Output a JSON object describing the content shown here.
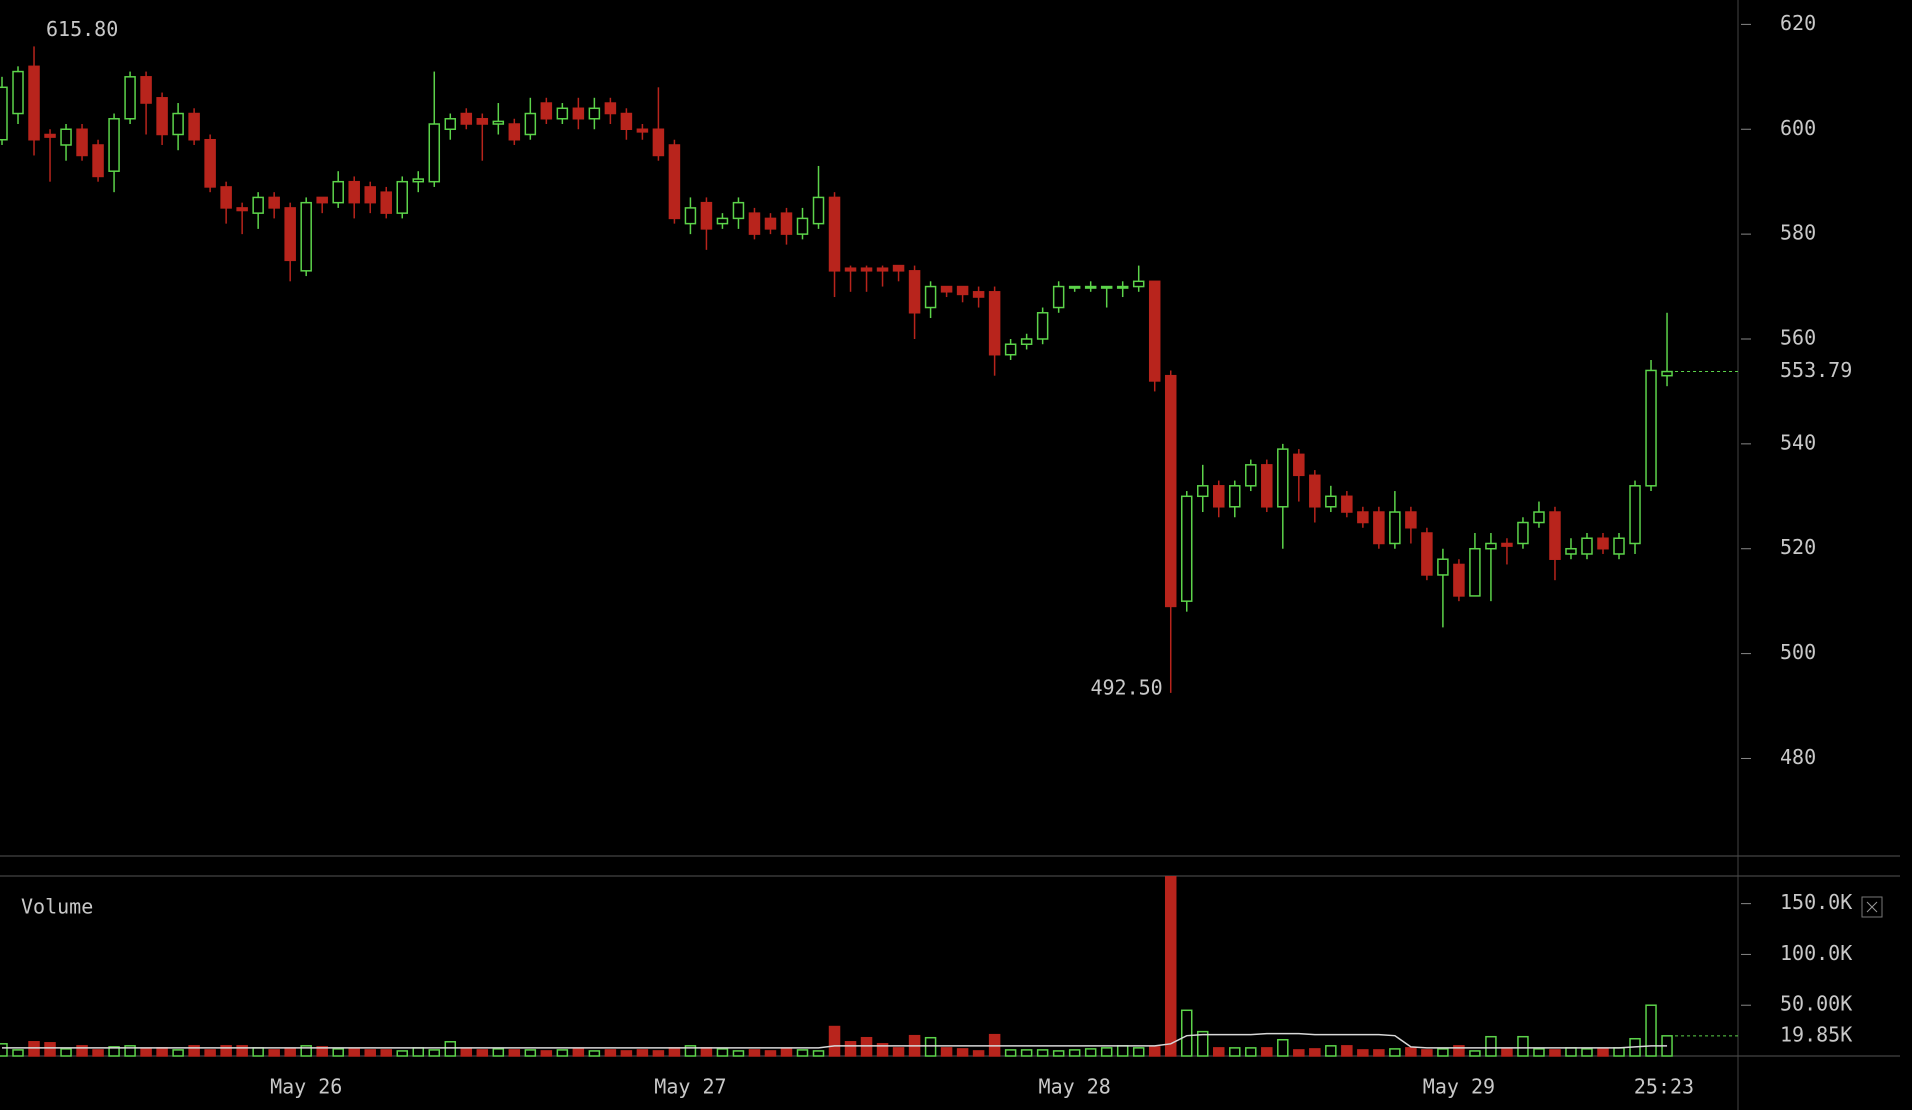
{
  "chart_data": {
    "type": "candlestick",
    "categories": [
      null,
      null,
      null,
      null,
      null,
      null,
      null,
      null,
      null,
      null,
      null,
      null,
      null,
      null,
      null,
      null,
      null,
      null,
      null,
      "May 26",
      null,
      null,
      null,
      null,
      null,
      null,
      null,
      null,
      null,
      null,
      null,
      null,
      null,
      null,
      null,
      null,
      null,
      null,
      null,
      null,
      null,
      null,
      null,
      "May 27",
      null,
      null,
      null,
      null,
      null,
      null,
      null,
      null,
      null,
      null,
      null,
      null,
      null,
      null,
      null,
      null,
      null,
      null,
      null,
      null,
      null,
      null,
      null,
      "May 28",
      null,
      null,
      null,
      null,
      null,
      null,
      null,
      null,
      null,
      null,
      null,
      null,
      null,
      null,
      null,
      null,
      null,
      null,
      null,
      null,
      null,
      null,
      null,
      "May 29",
      null,
      null,
      null,
      null,
      null,
      null,
      null,
      null,
      null,
      null,
      null,
      null,
      null
    ],
    "open": [
      598,
      603,
      612,
      599,
      597,
      600,
      597,
      592,
      602,
      610,
      606,
      599,
      603,
      598,
      589,
      585,
      584,
      587,
      585,
      573,
      587,
      586,
      590,
      589,
      588,
      584,
      590,
      590,
      600,
      603,
      602,
      601,
      601,
      599,
      605,
      602,
      604,
      602,
      605,
      603,
      600,
      600,
      597,
      582,
      586,
      582,
      583,
      584,
      583,
      584,
      580,
      582,
      587,
      573.5,
      573.5,
      573.5,
      574,
      573,
      566,
      570,
      570,
      569,
      569,
      557,
      559,
      560,
      566,
      569.8,
      569.8,
      569.8,
      569.8,
      570,
      571,
      553,
      510,
      530,
      532,
      528,
      532,
      536,
      528,
      538,
      534,
      528,
      530,
      527,
      527,
      521,
      527,
      523,
      515,
      517,
      511,
      520,
      521,
      521,
      525,
      527,
      519,
      519,
      522,
      519,
      521,
      532,
      553
    ],
    "high": [
      610,
      612,
      615.8,
      600,
      601,
      601,
      598,
      603,
      611,
      611,
      607,
      605,
      604,
      599,
      590,
      586,
      588,
      588,
      586,
      587,
      587,
      592,
      591,
      590,
      589,
      591,
      592,
      611,
      603,
      604,
      603,
      605,
      602,
      606,
      606,
      605,
      606,
      606,
      606,
      604,
      601,
      608,
      598,
      587,
      587,
      584,
      587,
      585,
      584,
      585,
      585,
      593,
      588,
      574,
      574,
      574,
      574,
      574,
      571,
      570,
      570,
      570,
      570,
      560,
      561,
      566,
      571,
      570,
      571,
      570,
      571,
      574,
      571,
      554,
      531,
      536,
      533,
      533,
      537,
      537,
      540,
      539,
      535,
      532,
      531,
      528,
      528,
      531,
      528,
      524,
      520,
      518,
      523,
      523,
      522,
      526,
      529,
      528,
      522,
      523,
      523,
      523,
      533,
      556,
      565
    ],
    "low": [
      597,
      601,
      595,
      590,
      594,
      594,
      590,
      588,
      601,
      599,
      597,
      596,
      597,
      588,
      582,
      580,
      581,
      583,
      571,
      572,
      584,
      585,
      583,
      584,
      583,
      583,
      588,
      589,
      598,
      600,
      594,
      599,
      597,
      598,
      601,
      601,
      600,
      600,
      601,
      598,
      598,
      594,
      582,
      580,
      577,
      581,
      581,
      579,
      580,
      578,
      579,
      581,
      568,
      569,
      569,
      570,
      571,
      560,
      564,
      568,
      567,
      566,
      553,
      556,
      558,
      559,
      565,
      569,
      569,
      566,
      568,
      569,
      550,
      492.5,
      508,
      527,
      526,
      526,
      531,
      527,
      520,
      529,
      525,
      527,
      526,
      524,
      520,
      520,
      521,
      514,
      505,
      510,
      511,
      510,
      517,
      520,
      524,
      514,
      518,
      518,
      519,
      518,
      519,
      531,
      551
    ],
    "close": [
      608,
      611,
      598,
      598.5,
      600,
      595,
      591,
      602,
      610,
      605,
      599,
      603,
      598,
      589,
      585,
      584.5,
      587,
      585,
      575,
      586,
      586,
      590,
      586,
      586,
      584,
      590,
      590.5,
      601,
      602,
      601,
      601,
      601.5,
      598,
      603,
      602,
      604,
      602,
      604,
      603,
      600,
      599.5,
      595,
      583,
      585,
      581,
      583,
      586,
      580,
      581,
      580,
      583,
      587,
      573,
      573,
      573,
      573,
      573,
      565,
      570,
      569,
      568.5,
      568,
      557,
      559,
      560,
      565,
      570,
      570,
      570,
      570,
      570,
      571,
      552,
      509,
      530,
      532,
      528,
      532,
      536,
      528,
      539,
      534,
      528,
      530,
      527,
      525,
      521,
      527,
      524,
      515,
      518,
      511,
      520,
      521,
      520.5,
      525,
      527,
      518,
      520,
      522,
      520,
      522,
      532,
      554,
      553.79
    ],
    "up_color": "#5cd34a",
    "down_color": "#b8241c",
    "ylim": [
      461.4,
      624.65
    ],
    "yticks": [
      480,
      500,
      520,
      540,
      560,
      580,
      600,
      620
    ],
    "high_label": {
      "value": 615.8,
      "label": "615.80"
    },
    "low_label": {
      "value": 492.5,
      "label": "492.50"
    },
    "countdown": "25:23",
    "volume": {
      "title": "Volume",
      "values": [
        12,
        6,
        14,
        13,
        7,
        10,
        6,
        9,
        10,
        7,
        8,
        6,
        10,
        6,
        10,
        10,
        8,
        6,
        7,
        10,
        9,
        7,
        7,
        6,
        6,
        5,
        8,
        6,
        14,
        7,
        6,
        7,
        6,
        6,
        5,
        6,
        7,
        5,
        6,
        5,
        6,
        5,
        8,
        10,
        8,
        7,
        5,
        6,
        5,
        7,
        6,
        5,
        29,
        14,
        18,
        12,
        8,
        20,
        18,
        8,
        7,
        5,
        21,
        6,
        6,
        6,
        5,
        6,
        7,
        8,
        10,
        8,
        9,
        180,
        45,
        24,
        8,
        8,
        8,
        8,
        16,
        6,
        7,
        10,
        10,
        6,
        6,
        7,
        8,
        6,
        7,
        10,
        5,
        19,
        7,
        19,
        7,
        6,
        8,
        7,
        7,
        8,
        17,
        50,
        19.85
      ],
      "value_labels": [
        null,
        null,
        null,
        null,
        null,
        null,
        null,
        null,
        null,
        null,
        null,
        null,
        null,
        null,
        null,
        null,
        null,
        null,
        null,
        null,
        null,
        null,
        null,
        null,
        null,
        null,
        null,
        null,
        null,
        null,
        null,
        null,
        null,
        null,
        null,
        null,
        null,
        null,
        null,
        null,
        null,
        null,
        null,
        null,
        null,
        null,
        null,
        null,
        null,
        null,
        null,
        null,
        null,
        null,
        null,
        null,
        null,
        null,
        null,
        null,
        null,
        null,
        null,
        null,
        null,
        null,
        null,
        null,
        null,
        null,
        null,
        null,
        null,
        null,
        null,
        null,
        null,
        null,
        null,
        null,
        null,
        null,
        null,
        null,
        null,
        null,
        null,
        null,
        null,
        null,
        null,
        null,
        null,
        null,
        null,
        null,
        null,
        null,
        null,
        null,
        null,
        null,
        null,
        null,
        "19.85K"
      ],
      "ma": [
        8,
        8,
        8,
        8,
        8,
        8,
        8,
        8,
        8,
        8,
        8,
        8,
        8,
        8,
        8,
        8,
        8,
        8,
        8,
        8,
        8,
        8,
        8,
        8,
        8,
        8,
        8,
        8,
        8,
        8,
        8,
        8,
        8,
        8,
        8,
        8,
        8,
        8,
        8,
        8,
        8,
        8,
        8,
        8,
        8,
        8,
        8,
        8,
        8,
        8,
        8,
        8,
        10,
        10,
        10,
        10,
        10,
        10,
        10,
        10,
        10,
        10,
        10,
        10,
        10,
        10,
        10,
        10,
        10,
        10,
        10,
        10,
        10,
        12,
        20,
        21,
        21,
        21,
        21,
        22,
        22,
        22,
        21,
        21,
        21,
        21,
        21,
        20,
        9,
        8,
        8,
        8,
        8,
        8,
        8,
        8,
        8,
        8,
        8,
        8,
        8,
        8,
        9,
        10,
        10
      ],
      "ma_color": "#d8d8d8",
      "ylim": [
        0,
        177.2
      ],
      "yticks": [
        {
          "value": 50,
          "label": "50.00K"
        },
        {
          "value": 100,
          "label": "100.0K"
        },
        {
          "value": 150,
          "label": "150.0K"
        }
      ]
    }
  }
}
